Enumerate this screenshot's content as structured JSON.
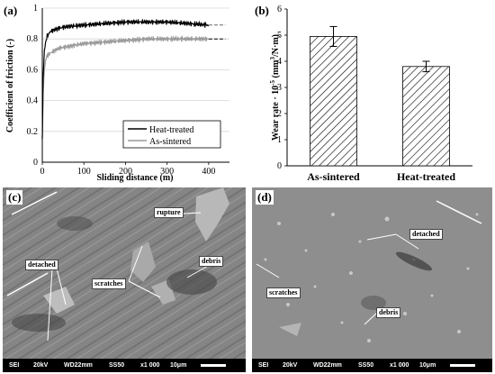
{
  "chart_data": [
    {
      "type": "line",
      "panel_label": "(a)",
      "xlabel": "Sliding distance (m)",
      "ylabel": "Coefficient of friction (-)",
      "xlim": [
        0,
        450
      ],
      "ylim": [
        0,
        1
      ],
      "xticks": [
        "0",
        "100",
        "200",
        "300",
        "400"
      ],
      "yticks": [
        "0",
        "0.2",
        "0.4",
        "0.6",
        "0.8",
        "1"
      ],
      "grid": "horizontal",
      "legend_position": "bottom-right",
      "series": [
        {
          "name": "Heat-treated",
          "color": "#000000",
          "x": [
            0,
            2,
            5,
            8,
            12,
            20,
            40,
            60,
            100,
            150,
            200,
            250,
            300,
            350,
            400
          ],
          "y": [
            0.15,
            0.55,
            0.72,
            0.78,
            0.82,
            0.85,
            0.87,
            0.88,
            0.89,
            0.9,
            0.91,
            0.91,
            0.91,
            0.9,
            0.89
          ],
          "steady_state": 0.89
        },
        {
          "name": "As-sintered",
          "color": "#9a9a9a",
          "x": [
            0,
            2,
            5,
            8,
            12,
            20,
            40,
            60,
            100,
            150,
            200,
            250,
            300,
            350,
            400
          ],
          "y": [
            0.15,
            0.45,
            0.6,
            0.66,
            0.69,
            0.71,
            0.74,
            0.75,
            0.77,
            0.78,
            0.79,
            0.8,
            0.8,
            0.8,
            0.8
          ],
          "steady_state": 0.8
        }
      ]
    },
    {
      "type": "bar",
      "panel_label": "(b)",
      "ylabel_main": "Wear rate · 10",
      "ylabel_exp": "-5",
      "ylabel_units": " (mm",
      "ylabel_units_exp": "3",
      "ylabel_units_tail": "/N·m)",
      "categories": [
        "As-sintered",
        "Heat-treated"
      ],
      "values": [
        4.95,
        3.8
      ],
      "errors": [
        0.38,
        0.2
      ],
      "ylim": [
        0,
        6
      ],
      "yticks": [
        "0",
        "1",
        "2",
        "3",
        "4",
        "5",
        "6"
      ],
      "bar_pattern": "diagonal-hatch"
    }
  ],
  "sem_panels": [
    {
      "panel_label": "(c)",
      "labels": [
        "rupture",
        "detached",
        "scratches",
        "debris"
      ],
      "footer": {
        "detector": "SEI",
        "voltage": "20kV",
        "wd": "WD22mm",
        "ss": "SS50",
        "mag": "x1 000",
        "scale": "10μm"
      }
    },
    {
      "panel_label": "(d)",
      "labels": [
        "detached",
        "scratches",
        "debris"
      ],
      "footer": {
        "detector": "SEI",
        "voltage": "20kV",
        "wd": "WD22mm",
        "ss": "SS50",
        "mag": "x1 000",
        "scale": "10μm"
      }
    }
  ]
}
